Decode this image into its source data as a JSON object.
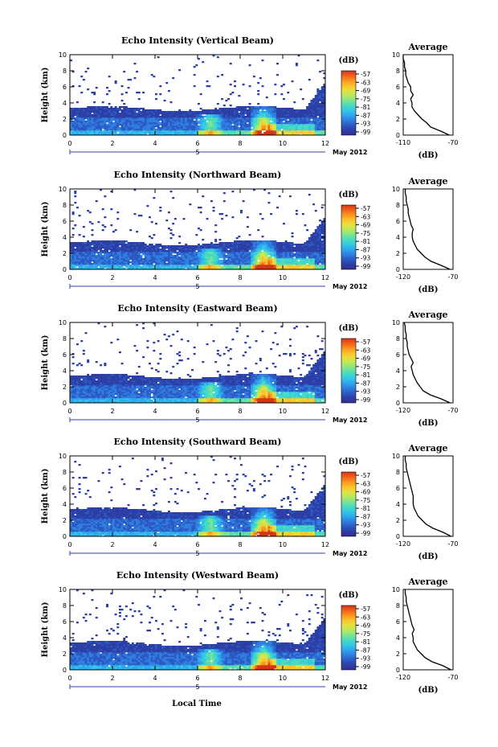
{
  "colormap": [
    "#3a2d8e",
    "#2c3fa6",
    "#2d59c4",
    "#2e7fe0",
    "#30a6ef",
    "#35c8e4",
    "#48dbc0",
    "#7fe48f",
    "#b7e85f",
    "#e4e23f",
    "#fbc22b",
    "#fb9520",
    "#f0611a",
    "#d43517"
  ],
  "shared": {
    "xlabel": "Local Time",
    "ylabel": "Height (km)",
    "x_ticks": [
      "0",
      "2",
      "4",
      "6",
      "8",
      "10",
      "12"
    ],
    "y_ticks": [
      "0",
      "2",
      "4",
      "6",
      "8",
      "10"
    ],
    "date_marker_label": "5",
    "month_label": "May 2012",
    "colorbar_unit": "(dB)",
    "colorbar_ticks": [
      "-57",
      "-63",
      "-69",
      "-75",
      "-81",
      "-87",
      "-93",
      "-99"
    ],
    "profile_title": "Average",
    "profile_xlabel": "(dB)"
  },
  "chart_data": [
    {
      "type": "heatmap",
      "title": "Echo Intensity (Vertical Beam)",
      "xlim": [
        0,
        12
      ],
      "ylim": [
        0,
        10
      ],
      "clim": [
        -99,
        -57
      ],
      "profile": {
        "type": "line",
        "title": "Average",
        "xlim": [
          -110,
          -70
        ],
        "x_ticks": [
          "-110",
          "-70"
        ],
        "heights_km": [
          0,
          0.5,
          1,
          1.5,
          2,
          2.5,
          3,
          3.5,
          4,
          4.5,
          5,
          5.5,
          6,
          6.5,
          7,
          7.5,
          8,
          8.5,
          9,
          9.5,
          10
        ],
        "values_db": [
          -73,
          -80,
          -88,
          -91,
          -95,
          -98,
          -101,
          -103,
          -103,
          -104,
          -102,
          -104,
          -104,
          -106,
          -107,
          -108,
          -108,
          -109,
          -109,
          -110,
          -110
        ]
      }
    },
    {
      "type": "heatmap",
      "title": "Echo Intensity (Northward Beam)",
      "xlim": [
        0,
        12
      ],
      "ylim": [
        0,
        10
      ],
      "clim": [
        -99,
        -57
      ],
      "profile": {
        "type": "line",
        "title": "Average",
        "xlim": [
          -120,
          -70
        ],
        "x_ticks": [
          "-120",
          "-70"
        ],
        "heights_km": [
          0,
          0.5,
          1,
          1.5,
          2,
          2.5,
          3,
          3.5,
          4,
          4.5,
          5,
          5.5,
          6,
          6.5,
          7,
          7.5,
          8,
          8.5,
          9,
          9.5,
          10
        ],
        "values_db": [
          -73,
          -82,
          -92,
          -98,
          -102,
          -106,
          -108,
          -110,
          -111,
          -111,
          -110,
          -112,
          -113,
          -114,
          -115,
          -115,
          -116,
          -117,
          -117,
          -118,
          -118
        ]
      }
    },
    {
      "type": "heatmap",
      "title": "Echo Intensity (Eastward Beam)",
      "xlim": [
        0,
        12
      ],
      "ylim": [
        0,
        10
      ],
      "clim": [
        -99,
        -57
      ],
      "profile": {
        "type": "line",
        "title": "Average",
        "xlim": [
          -120,
          -70
        ],
        "x_ticks": [
          "-120",
          "-70"
        ],
        "heights_km": [
          0,
          0.5,
          1,
          1.5,
          2,
          2.5,
          3,
          3.5,
          4,
          4.5,
          5,
          5.5,
          6,
          6.5,
          7,
          7.5,
          8,
          8.5,
          9,
          9.5,
          10
        ],
        "values_db": [
          -73,
          -82,
          -93,
          -100,
          -103,
          -106,
          -108,
          -110,
          -111,
          -112,
          -110,
          -112,
          -114,
          -115,
          -116,
          -116,
          -117,
          -117,
          -118,
          -118,
          -119
        ]
      }
    },
    {
      "type": "heatmap",
      "title": "Echo Intensity (Southward Beam)",
      "xlim": [
        0,
        12
      ],
      "ylim": [
        0,
        10
      ],
      "clim": [
        -99,
        -57
      ],
      "profile": {
        "type": "line",
        "title": "Average",
        "xlim": [
          -120,
          -70
        ],
        "x_ticks": [
          "-120",
          "-70"
        ],
        "heights_km": [
          0,
          0.5,
          1,
          1.5,
          2,
          2.5,
          3,
          3.5,
          4,
          4.5,
          5,
          5.5,
          6,
          6.5,
          7,
          7.5,
          8,
          8.5,
          9,
          9.5,
          10
        ],
        "values_db": [
          -72,
          -80,
          -90,
          -97,
          -101,
          -105,
          -107,
          -109,
          -110,
          -110,
          -110,
          -111,
          -112,
          -113,
          -114,
          -115,
          -116,
          -117,
          -117,
          -118,
          -118
        ]
      }
    },
    {
      "type": "heatmap",
      "title": "Echo Intensity (Westward Beam)",
      "xlim": [
        0,
        12
      ],
      "ylim": [
        0,
        10
      ],
      "clim": [
        -99,
        -57
      ],
      "profile": {
        "type": "line",
        "title": "Average",
        "xlim": [
          -120,
          -70
        ],
        "x_ticks": [
          "-120",
          "-70"
        ],
        "heights_km": [
          0,
          0.5,
          1,
          1.5,
          2,
          2.5,
          3,
          3.5,
          4,
          4.5,
          5,
          5.5,
          6,
          6.5,
          7,
          7.5,
          8,
          8.5,
          9,
          9.5,
          10
        ],
        "values_db": [
          -72,
          -80,
          -91,
          -98,
          -102,
          -106,
          -108,
          -110,
          -110,
          -111,
          -109,
          -111,
          -112,
          -113,
          -114,
          -115,
          -116,
          -117,
          -117,
          -118,
          -118
        ]
      }
    }
  ]
}
